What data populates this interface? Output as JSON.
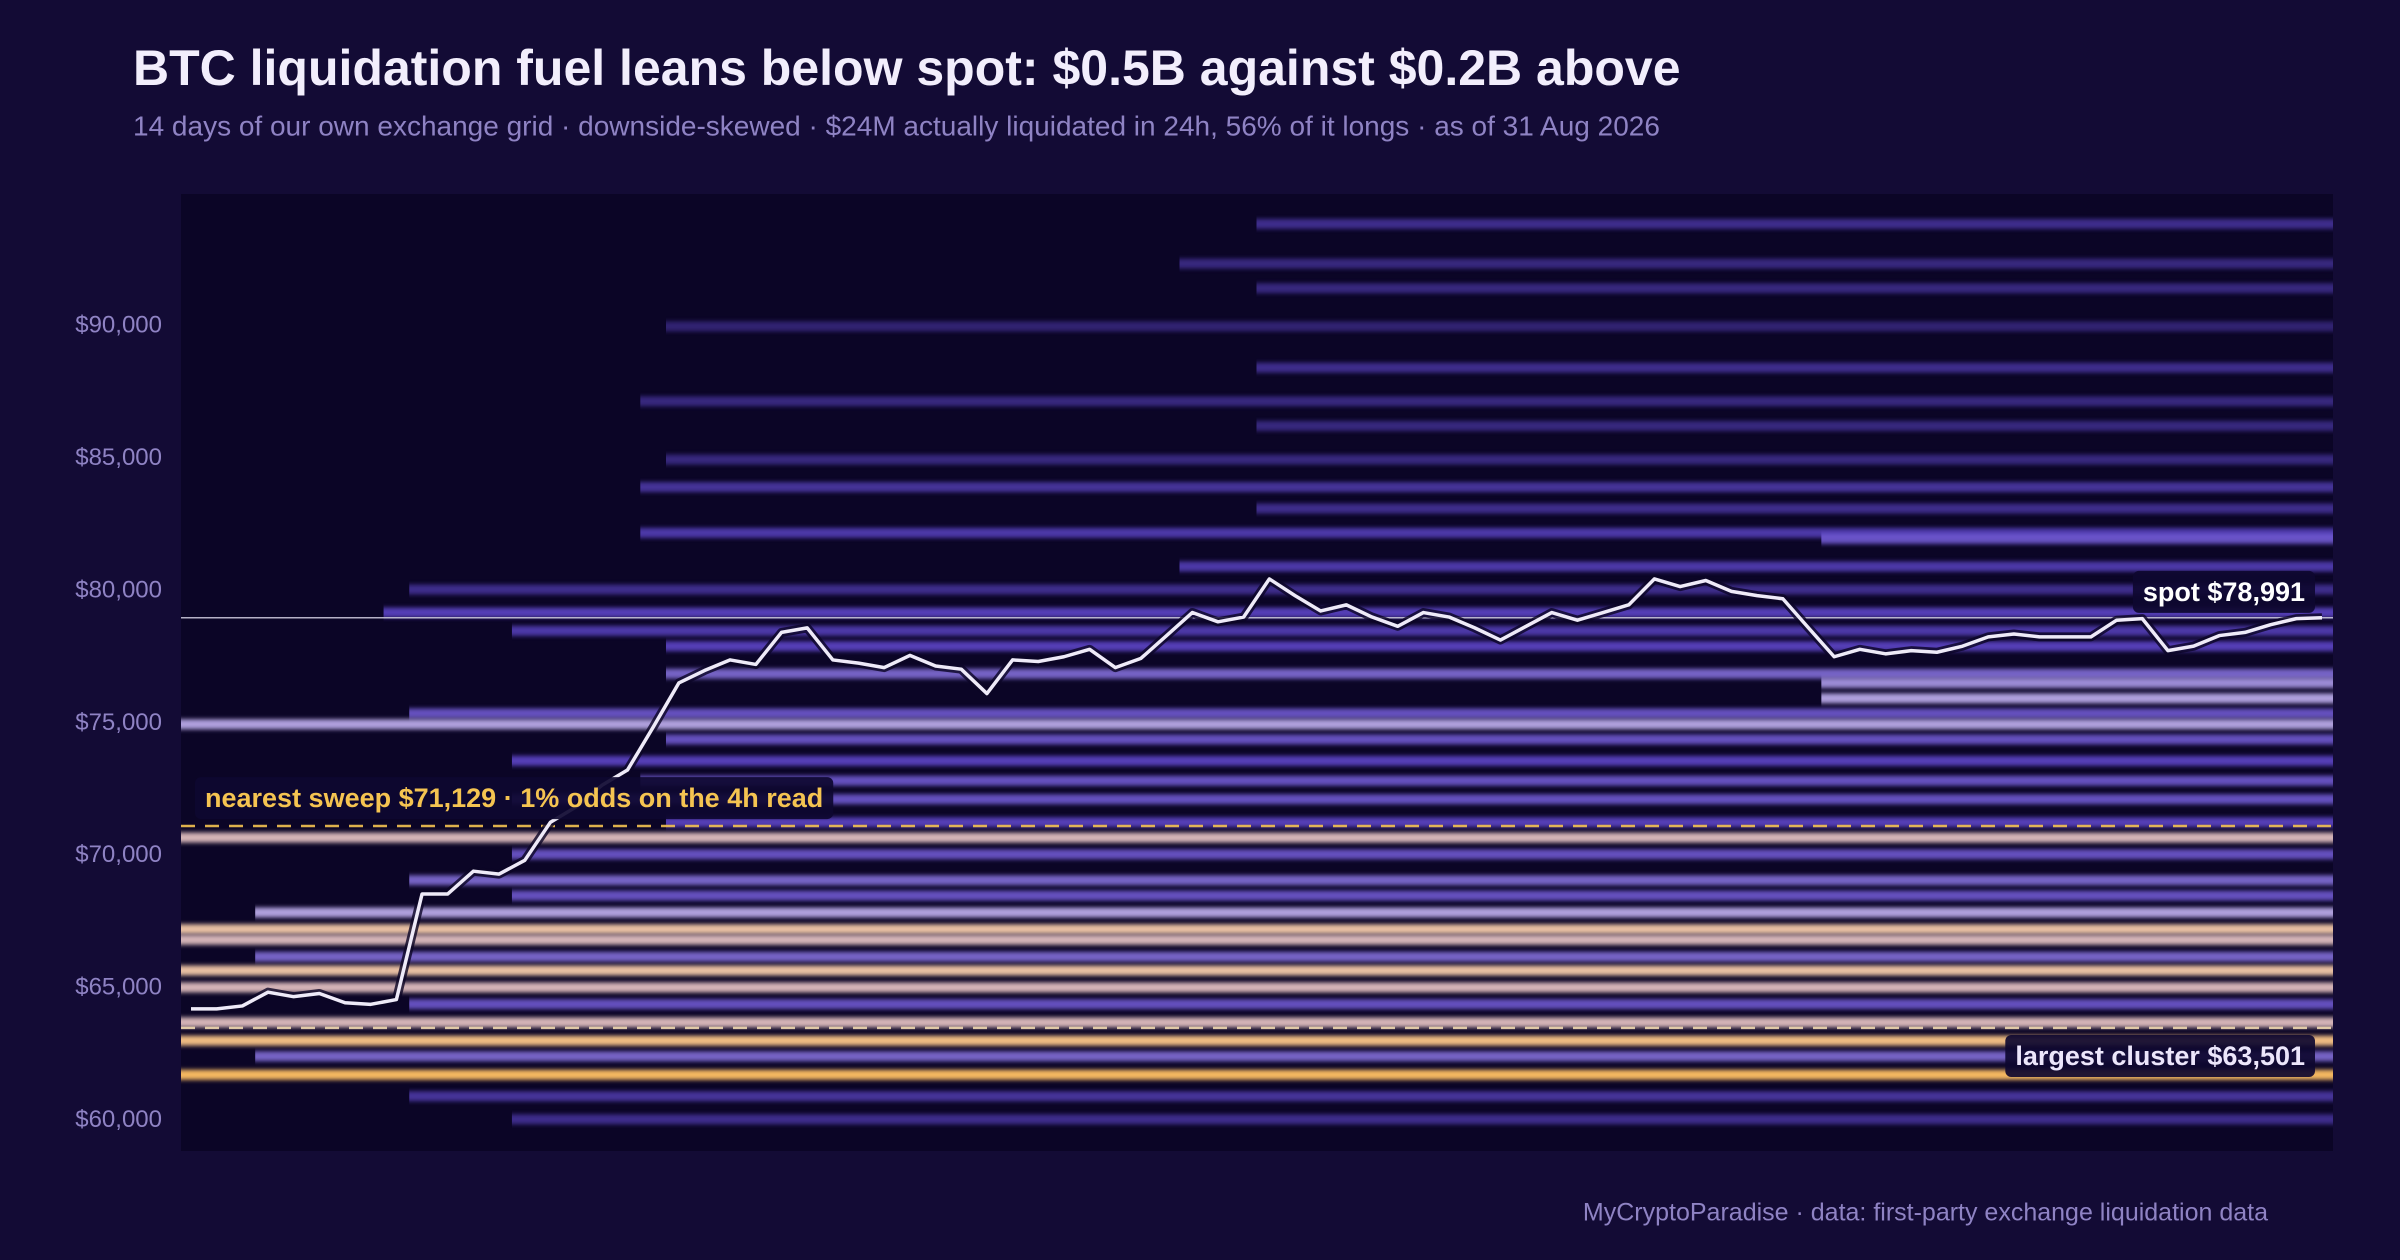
{
  "chart_data": {
    "type": "heatmap",
    "title": "BTC liquidation fuel leans below spot: $0.5B against $0.2B above",
    "subtitle": "14 days of our own exchange grid · downside-skewed · $24M actually liquidated in 24h, 56% of it longs · as of 31 Aug 2026",
    "footer": "MyCryptoParadise  ·  data: first-party exchange liquidation data",
    "ylim": [
      58850,
      95000
    ],
    "yticks": [
      {
        "value": 60000,
        "label": "$60,000"
      },
      {
        "value": 65000,
        "label": "$65,000"
      },
      {
        "value": 70000,
        "label": "$70,000"
      },
      {
        "value": 75000,
        "label": "$75,000"
      },
      {
        "value": 80000,
        "label": "$80,000"
      },
      {
        "value": 85000,
        "label": "$85,000"
      },
      {
        "value": 90000,
        "label": "$90,000"
      }
    ],
    "colorscale": [
      [
        0,
        "#1e124f"
      ],
      [
        0.5,
        "#6a50e0"
      ],
      [
        0.75,
        "#c4b4f4"
      ],
      [
        0.9,
        "#f2c8a8"
      ],
      [
        1,
        "#f5b860"
      ]
    ],
    "line": {
      "color": "#eeeaf8",
      "values": [
        64220,
        64220,
        64330,
        64850,
        64680,
        64800,
        64450,
        64390,
        64570,
        68560,
        68560,
        69420,
        69310,
        69830,
        71270,
        71850,
        72660,
        73240,
        74860,
        76530,
        77000,
        77400,
        77230,
        78440,
        78610,
        77400,
        77280,
        77110,
        77570,
        77170,
        77050,
        76130,
        77400,
        77340,
        77520,
        77800,
        77110,
        77460,
        78320,
        79190,
        78840,
        79020,
        80460,
        79830,
        79250,
        79480,
        79020,
        78670,
        79190,
        79020,
        78610,
        78150,
        78670,
        79190,
        78900,
        79190,
        79480,
        80460,
        80170,
        80400,
        79990,
        79830,
        79710,
        78610,
        77520,
        77800,
        77630,
        77750,
        77690,
        77920,
        78270,
        78380,
        78270,
        78270,
        78270,
        78900,
        78960,
        77750,
        77920,
        78320,
        78440,
        78730,
        78960,
        78991
      ]
    },
    "bands": [
      {
        "price": 93870,
        "start": 42,
        "intensity": 0.35
      },
      {
        "price": 92370,
        "start": 39,
        "intensity": 0.3
      },
      {
        "price": 91440,
        "start": 42,
        "intensity": 0.3
      },
      {
        "price": 90000,
        "start": 19,
        "intensity": 0.25
      },
      {
        "price": 88440,
        "start": 42,
        "intensity": 0.35
      },
      {
        "price": 87170,
        "start": 18,
        "intensity": 0.3
      },
      {
        "price": 86240,
        "start": 42,
        "intensity": 0.3
      },
      {
        "price": 84970,
        "start": 19,
        "intensity": 0.3
      },
      {
        "price": 83930,
        "start": 18,
        "intensity": 0.4
      },
      {
        "price": 83120,
        "start": 42,
        "intensity": 0.35
      },
      {
        "price": 82200,
        "start": 18,
        "intensity": 0.45
      },
      {
        "price": 81970,
        "start": 64,
        "intensity": 0.55
      },
      {
        "price": 80930,
        "start": 39,
        "intensity": 0.45
      },
      {
        "price": 80060,
        "start": 9,
        "intensity": 0.35
      },
      {
        "price": 79190,
        "start": 8,
        "intensity": 0.5
      },
      {
        "price": 78500,
        "start": 13,
        "intensity": 0.45
      },
      {
        "price": 77920,
        "start": 19,
        "intensity": 0.5
      },
      {
        "price": 76880,
        "start": 19,
        "intensity": 0.6
      },
      {
        "price": 76530,
        "start": 64,
        "intensity": 0.7
      },
      {
        "price": 75950,
        "start": 64,
        "intensity": 0.75
      },
      {
        "price": 75380,
        "start": 9,
        "intensity": 0.55
      },
      {
        "price": 74970,
        "start": 0,
        "intensity": 0.75
      },
      {
        "price": 74400,
        "start": 19,
        "intensity": 0.55
      },
      {
        "price": 73590,
        "start": 13,
        "intensity": 0.5
      },
      {
        "price": 72840,
        "start": 18,
        "intensity": 0.55
      },
      {
        "price": 72140,
        "start": 13,
        "intensity": 0.55
      },
      {
        "price": 71270,
        "start": 19,
        "intensity": 0.5
      },
      {
        "price": 70690,
        "start": 0,
        "intensity": 0.85
      },
      {
        "price": 70060,
        "start": 13,
        "intensity": 0.55
      },
      {
        "price": 69080,
        "start": 9,
        "intensity": 0.6
      },
      {
        "price": 68500,
        "start": 13,
        "intensity": 0.55
      },
      {
        "price": 67860,
        "start": 3,
        "intensity": 0.75
      },
      {
        "price": 67230,
        "start": 0,
        "intensity": 0.9
      },
      {
        "price": 66830,
        "start": 0,
        "intensity": 0.85
      },
      {
        "price": 66190,
        "start": 3,
        "intensity": 0.6
      },
      {
        "price": 65670,
        "start": 0,
        "intensity": 0.9
      },
      {
        "price": 65030,
        "start": 0,
        "intensity": 0.85
      },
      {
        "price": 64400,
        "start": 9,
        "intensity": 0.55
      },
      {
        "price": 63710,
        "start": 0,
        "intensity": 0.85
      },
      {
        "price": 63020,
        "start": 0,
        "intensity": 0.95
      },
      {
        "price": 62430,
        "start": 3,
        "intensity": 0.6
      },
      {
        "price": 61730,
        "start": 0,
        "intensity": 1.0
      },
      {
        "price": 60920,
        "start": 9,
        "intensity": 0.4
      },
      {
        "price": 60050,
        "start": 13,
        "intensity": 0.35
      }
    ],
    "annotations": [
      {
        "label": "spot  $78,991",
        "value": 78991,
        "color": "#c8c4d8",
        "text_color": "#ffffff",
        "dashed": false,
        "side": "right"
      },
      {
        "label": "nearest sweep  $71,129  ·  1% odds on the 4h read",
        "value": 71129,
        "color": "#f5c451",
        "text_color": "#f5c451",
        "dashed": true,
        "side": "left"
      },
      {
        "label": "largest cluster  $63,501",
        "value": 63501,
        "color": "#f0d8b0",
        "text_color": "#ece6fb",
        "dashed": true,
        "side": "right"
      }
    ]
  }
}
